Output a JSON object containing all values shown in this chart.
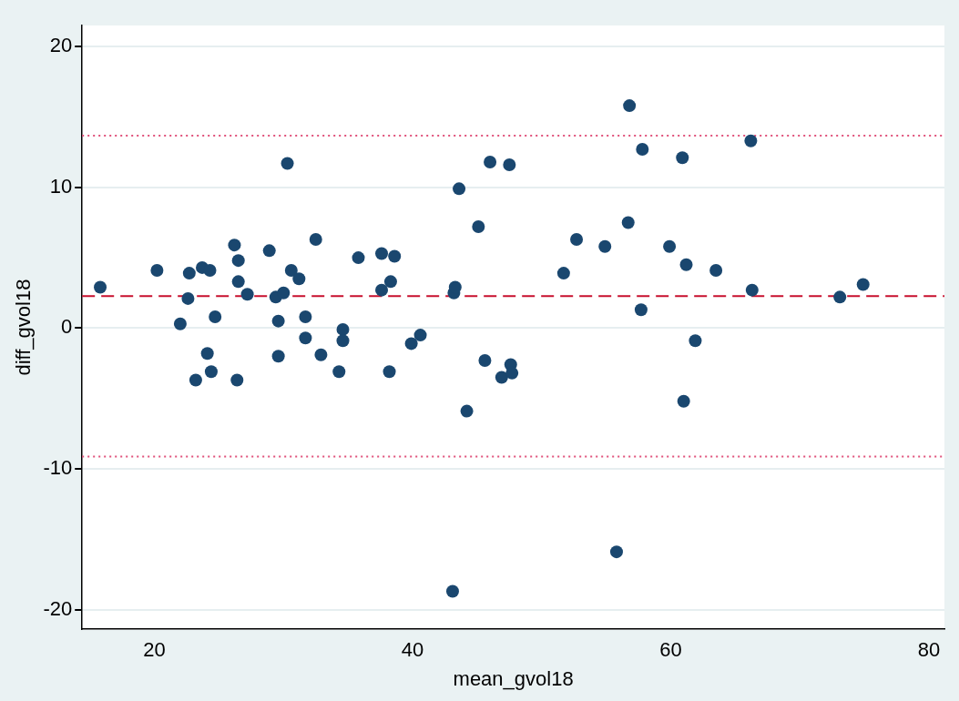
{
  "chart_data": {
    "type": "scatter",
    "xlabel": "mean_gvol18",
    "ylabel": "diff_gvol18",
    "xlim": [
      14.4,
      81.2
    ],
    "ylim": [
      -21.4,
      21.5
    ],
    "xticks": [
      20,
      40,
      60,
      80
    ],
    "yticks": [
      -20,
      -10,
      0,
      10,
      20
    ],
    "grid": "y",
    "marker": "circle",
    "series": [
      {
        "color": "#1a476f",
        "x": [
          15.8,
          20.2,
          22.7,
          22.6,
          22.0,
          23.7,
          24.3,
          23.2,
          24.1,
          24.4,
          24.7,
          26.2,
          26.5,
          26.5,
          26.4,
          27.2,
          28.9,
          29.4,
          29.6,
          29.6,
          30.0,
          30.3,
          30.6,
          31.2,
          31.7,
          31.7,
          32.5,
          32.9,
          34.3,
          34.6,
          34.6,
          35.8,
          37.6,
          37.6,
          38.3,
          38.6,
          38.2,
          39.9,
          40.6,
          43.2,
          43.3,
          43.1,
          43.6,
          44.2,
          45.1,
          45.6,
          46.0,
          46.9,
          47.5,
          47.6,
          47.7,
          51.7,
          52.7,
          54.9,
          56.7,
          56.8,
          55.8,
          57.8,
          57.7,
          59.9,
          60.9,
          61.2,
          61.0,
          61.9,
          63.5,
          66.2,
          66.3,
          73.1,
          74.9
        ],
        "values": [
          2.9,
          4.1,
          3.9,
          2.1,
          0.3,
          4.3,
          4.1,
          -3.7,
          -1.8,
          -3.1,
          0.8,
          5.9,
          4.8,
          3.3,
          -3.7,
          2.4,
          5.5,
          2.2,
          0.5,
          -2.0,
          2.5,
          11.7,
          4.1,
          3.5,
          0.8,
          -0.7,
          6.3,
          -1.9,
          -3.1,
          -0.1,
          -0.9,
          5.0,
          5.3,
          2.7,
          3.3,
          5.1,
          -3.1,
          -1.1,
          -0.5,
          2.5,
          2.9,
          -18.7,
          9.9,
          -5.9,
          7.2,
          -2.3,
          11.8,
          -3.5,
          11.6,
          -2.6,
          -3.2,
          3.9,
          6.3,
          5.8,
          7.5,
          15.8,
          -15.9,
          12.7,
          1.3,
          5.8,
          12.1,
          4.5,
          -5.2,
          -0.9,
          4.1,
          13.3,
          2.7,
          2.2,
          3.1
        ]
      }
    ],
    "ref_lines": [
      {
        "axis": "y",
        "value": 2.27,
        "color": "#c8102e",
        "line_style": "dashed"
      },
      {
        "axis": "y",
        "value": 13.67,
        "color": "#e0507a",
        "line_style": "dotted"
      },
      {
        "axis": "y",
        "value": -9.13,
        "color": "#e0507a",
        "line_style": "dotted"
      }
    ]
  }
}
